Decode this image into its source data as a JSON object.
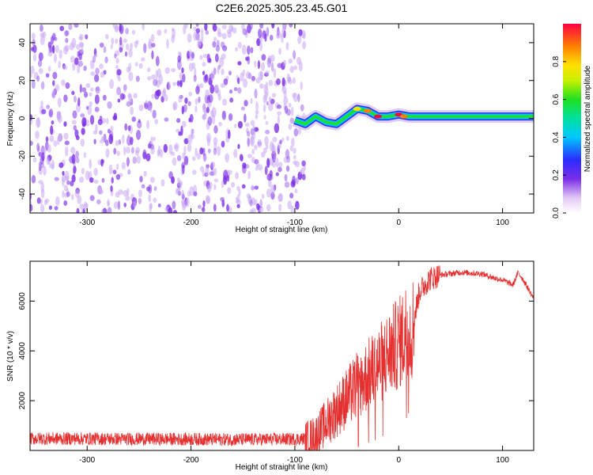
{
  "figure": {
    "title": "C2E6.2025.305.23.45.G01"
  },
  "colors": {
    "purple_dense": "#7a2ee6",
    "purple_light": "#c9a8f2",
    "snr_red": "#e53030",
    "axis": "#000000"
  },
  "chart_data": [
    {
      "type": "heatmap",
      "xlabel": "Height of straight line (km)",
      "ylabel": "Frequency (Hz)",
      "xlim": [
        -355,
        130
      ],
      "ylim": [
        -50,
        50
      ],
      "x_ticks": [
        -300,
        -200,
        -100,
        0,
        100
      ],
      "y_ticks": [
        -40,
        -20,
        0,
        20,
        40
      ],
      "noise_region_x": [
        -355,
        -90
      ],
      "signal_track": [
        {
          "x": -100,
          "y": -1
        },
        {
          "x": -90,
          "y": -3
        },
        {
          "x": -80,
          "y": 1
        },
        {
          "x": -70,
          "y": -2
        },
        {
          "x": -60,
          "y": -3
        },
        {
          "x": -50,
          "y": 1
        },
        {
          "x": -40,
          "y": 5
        },
        {
          "x": -30,
          "y": 4
        },
        {
          "x": -20,
          "y": 1
        },
        {
          "x": -10,
          "y": 1
        },
        {
          "x": 0,
          "y": 2
        },
        {
          "x": 10,
          "y": 1
        },
        {
          "x": 20,
          "y": 1
        },
        {
          "x": 60,
          "y": 1
        },
        {
          "x": 100,
          "y": 1
        },
        {
          "x": 130,
          "y": 1
        }
      ],
      "colorbar": {
        "label": "Normalized spectral amplitude",
        "ticks": [
          "0.0",
          "0.2",
          "0.4",
          "0.6",
          "0.8"
        ],
        "range": [
          0,
          1
        ]
      }
    },
    {
      "type": "line",
      "xlabel": "Height of straight line (km)",
      "ylabel": "SNR (10 * v/v)",
      "xlim": [
        -355,
        130
      ],
      "ylim": [
        0,
        7600
      ],
      "x_ticks": [
        -300,
        -200,
        -100,
        0,
        100
      ],
      "y_ticks": [
        2000,
        4000,
        6000
      ],
      "series": [
        {
          "x": [
            -355,
            -300,
            -250,
            -200,
            -150,
            -110,
            -90,
            -80,
            -70,
            -60,
            -50,
            -40,
            -30,
            -20,
            -10,
            0,
            5,
            10,
            12,
            20,
            30,
            40,
            60,
            80,
            90,
            100,
            110,
            115,
            120,
            130
          ],
          "y": [
            480,
            470,
            460,
            450,
            440,
            450,
            470,
            600,
            1100,
            1600,
            2100,
            2600,
            3000,
            3400,
            3900,
            4300,
            4600,
            5200,
            4700,
            6400,
            6900,
            7050,
            7150,
            7100,
            6950,
            6850,
            6650,
            7150,
            6850,
            6100
          ]
        }
      ]
    }
  ]
}
